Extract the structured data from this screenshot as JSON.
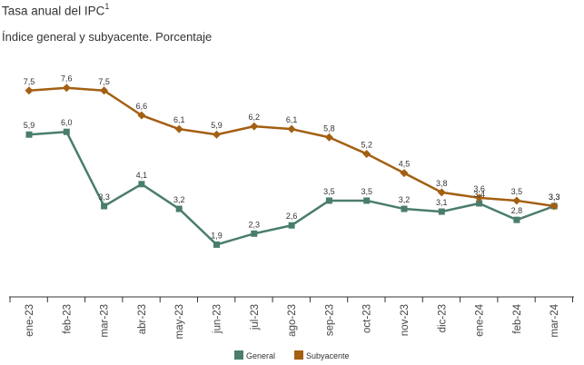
{
  "chart_data": {
    "type": "line",
    "title": "Tasa anual del IPC",
    "title_sup": "1",
    "subtitle": "Índice general y subyacente. Porcentaje",
    "categories": [
      "ene-23",
      "feb-23",
      "mar-23",
      "abr-23",
      "may-23",
      "jun-23",
      "jul-23",
      "ago-23",
      "sep-23",
      "oct-23",
      "nov-23",
      "dic-23",
      "ene-24",
      "feb-24",
      "mar-24"
    ],
    "series": [
      {
        "name": "General",
        "color": "#4a7d6c",
        "marker": "square",
        "values": [
          5.9,
          6.0,
          3.3,
          4.1,
          3.2,
          1.9,
          2.3,
          2.6,
          3.5,
          3.5,
          3.2,
          3.1,
          3.4,
          2.8,
          3.3
        ],
        "labels": [
          "5,9",
          "6,0",
          "3,3",
          "4,1",
          "3,2",
          "1,9",
          "2,3",
          "2,6",
          "3,5",
          "3,5",
          "3,2",
          "3,1",
          "3,4",
          "2,8",
          "3,3"
        ]
      },
      {
        "name": "Subyacente",
        "color": "#a35f12",
        "marker": "diamond",
        "values": [
          7.5,
          7.6,
          7.5,
          6.6,
          6.1,
          5.9,
          6.2,
          6.1,
          5.8,
          5.2,
          4.5,
          3.8,
          3.6,
          3.5,
          3.3
        ],
        "labels": [
          "7,5",
          "7,6",
          "7,5",
          "6,6",
          "6,1",
          "5,9",
          "6,2",
          "6,1",
          "5,8",
          "5,2",
          "4,5",
          "3,8",
          "3,6",
          "3,5",
          "3,3"
        ]
      }
    ],
    "grid": false,
    "legend_position": "bottom"
  }
}
